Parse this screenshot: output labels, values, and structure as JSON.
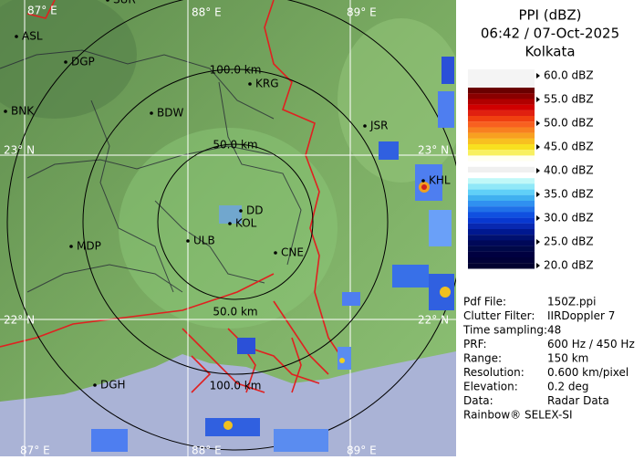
{
  "header": {
    "title": "PPI (dBZ)",
    "time": "06:42 / 07-Oct-2025",
    "site": "Kolkata"
  },
  "legend": {
    "labels": [
      "60.0 dBZ",
      "55.0 dBZ",
      "50.0 dBZ",
      "45.0 dBZ",
      "40.0 dBZ",
      "35.0 dBZ",
      "30.0 dBZ",
      "25.0 dBZ",
      "20.0 dBZ"
    ]
  },
  "info": {
    "rows": [
      [
        "Pdf File:",
        "150Z.ppi"
      ],
      [
        "Clutter Filter:",
        "IIRDoppler 7"
      ],
      [
        "Time sampling:48"
      ],
      [
        "PRF:",
        "600 Hz / 450 Hz"
      ],
      [
        "Range:",
        "150 km"
      ],
      [
        "Resolution:",
        "0.600 km/pixel"
      ],
      [
        "Elevation:",
        "0.2 deg"
      ],
      [
        "Data:",
        "Radar Data"
      ]
    ],
    "footer": "Rainbow® SELEX-SI"
  },
  "map": {
    "grid_labels": [
      "87° E",
      "88° E",
      "89° E",
      "23° N",
      "23° N",
      "22° N",
      "22° N",
      "87° E",
      "88° E",
      "89° E"
    ],
    "range_labels": [
      "100.0 km",
      "50.0 km",
      "50.0 km",
      "100.0 km"
    ],
    "places": [
      "SUR",
      "ASL",
      "DGP",
      "BNK",
      "BDW",
      "KRG",
      "JSR",
      "KHL",
      "DD",
      "KOL",
      "ULB",
      "CNE",
      "MDP",
      "DGH"
    ]
  }
}
